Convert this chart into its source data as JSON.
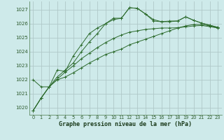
{
  "title": "Graphe pression niveau de la mer (hPa)",
  "background_color": "#ceeaea",
  "grid_color": "#b0c8c8",
  "line_color": "#2d6b2d",
  "xlim": [
    -0.5,
    23.5
  ],
  "ylim": [
    1019.5,
    1027.6
  ],
  "yticks": [
    1020,
    1021,
    1022,
    1023,
    1024,
    1025,
    1026,
    1027
  ],
  "xticks": [
    0,
    1,
    2,
    3,
    4,
    5,
    6,
    7,
    8,
    9,
    10,
    11,
    12,
    13,
    14,
    15,
    16,
    17,
    18,
    19,
    20,
    21,
    22,
    23
  ],
  "series": [
    [
      1019.8,
      1020.7,
      1021.5,
      1022.2,
      1022.7,
      1023.2,
      1024.0,
      1024.7,
      1025.3,
      1026.0,
      1026.3,
      1026.4,
      1027.15,
      1027.1,
      1026.7,
      1026.3,
      1026.15,
      1026.15,
      1026.2,
      1026.5,
      1026.25,
      1026.05,
      1025.9,
      1025.75
    ],
    [
      1019.8,
      1020.7,
      1021.5,
      1022.0,
      1022.2,
      1022.5,
      1022.85,
      1023.2,
      1023.5,
      1023.8,
      1024.0,
      1024.2,
      1024.5,
      1024.7,
      1024.9,
      1025.1,
      1025.3,
      1025.5,
      1025.7,
      1025.85,
      1025.95,
      1025.95,
      1025.85,
      1025.7
    ],
    [
      1019.8,
      1020.7,
      1021.5,
      1022.05,
      1022.55,
      1023.0,
      1023.5,
      1023.9,
      1024.3,
      1024.65,
      1024.95,
      1025.2,
      1025.4,
      1025.5,
      1025.6,
      1025.65,
      1025.7,
      1025.7,
      1025.72,
      1025.78,
      1025.85,
      1025.88,
      1025.8,
      1025.7
    ],
    [
      1022.0,
      1021.5,
      1021.5,
      1022.7,
      1022.6,
      1023.7,
      1024.5,
      1025.3,
      1025.7,
      1026.0,
      1026.4,
      1026.4,
      1027.15,
      1027.1,
      1026.7,
      1026.2,
      1026.15,
      1026.2,
      1026.2,
      1026.5,
      1026.25,
      1026.05,
      1025.9,
      1025.75
    ]
  ]
}
